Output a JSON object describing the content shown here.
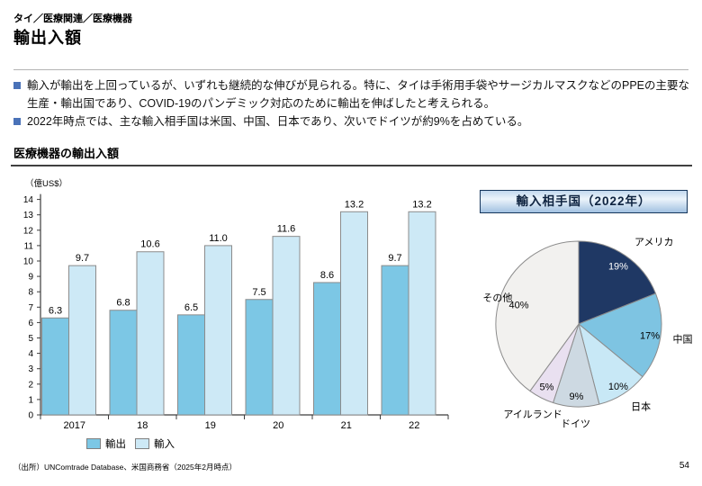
{
  "page": {
    "breadcrumb": "タイ／医療関連／医療機器",
    "title": "輸出入額",
    "bullets": [
      "輸入が輸出を上回っているが、いずれも継続的な伸びが見られる。特に、タイは手術用手袋やサージカルマスクなどのPPEの主要な生産・輸出国であり、COVID-19のパンデミック対応のために輸出を伸ばしたと考えられる。",
      "2022年時点では、主な輸入相手国は米国、中国、日本であり、次いでドイツが約9%を占めている。"
    ],
    "section_title": "医療機器の輸出入額",
    "source": "（出所）UNComtrade Database、米国商務省（2025年2月時点）",
    "page_number": "54"
  },
  "colors": {
    "bullet_marker": "#4A72B8",
    "axis": "#3c3c3c",
    "bar_border": "#8c8c8c",
    "accent_dark": "#1F3864"
  },
  "chart_data": [
    {
      "type": "bar",
      "title": "医療機器の輸出入額",
      "unit_label": "（億US$）",
      "categories": [
        "2017",
        "18",
        "19",
        "20",
        "21",
        "22"
      ],
      "series": [
        {
          "name": "輸出",
          "color": "#7CC7E5",
          "values": [
            6.3,
            6.8,
            6.5,
            7.5,
            8.6,
            9.7
          ]
        },
        {
          "name": "輸入",
          "color": "#CDE9F6",
          "values": [
            9.7,
            10.6,
            11.0,
            11.6,
            13.2,
            13.2
          ]
        }
      ],
      "ylim": [
        0,
        14
      ],
      "ytick_step": 1,
      "grid": false,
      "legend_position": "bottom"
    },
    {
      "type": "pie",
      "title": "輸入相手国（2022年）",
      "start_angle_deg": -90,
      "direction": "clockwise",
      "slices": [
        {
          "label": "アメリカ",
          "value": 19,
          "pct_label": "19%",
          "color": "#1F3864",
          "pct_color": "#ffffff"
        },
        {
          "label": "中国",
          "value": 17,
          "pct_label": "17%",
          "color": "#7EC4E2",
          "pct_color": "#000000"
        },
        {
          "label": "日本",
          "value": 10,
          "pct_label": "10%",
          "color": "#C8E8F6",
          "pct_color": "#000000"
        },
        {
          "label": "ドイツ",
          "value": 9,
          "pct_label": "9%",
          "color": "#CDD9E2",
          "pct_color": "#000000"
        },
        {
          "label": "アイルランド",
          "value": 5,
          "pct_label": "5%",
          "color": "#E9E0F0",
          "pct_color": "#000000"
        },
        {
          "label": "その他",
          "value": 40,
          "pct_label": "40%",
          "color": "#F2F1EF",
          "pct_color": "#000000"
        }
      ],
      "layout": {
        "pct_r": [
          0.85,
          0.87,
          0.89,
          0.87,
          0.85,
          0.76
        ],
        "name_r": [
          1.2,
          1.15,
          1.18,
          1.2,
          1.22,
          1.03
        ],
        "name_anchor": [
          "start",
          "start",
          "start",
          "middle",
          "middle",
          "middle"
        ]
      }
    }
  ]
}
